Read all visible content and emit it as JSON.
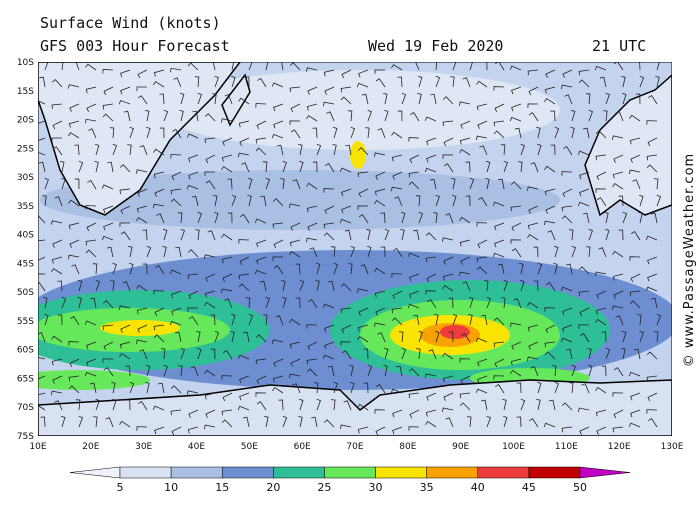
{
  "header": {
    "title": "Surface Wind (knots)",
    "subtitle": "GFS 003 Hour Forecast",
    "date": "Wed 19 Feb 2020",
    "time": "21 UTC"
  },
  "latitudes": [
    "10S",
    "15S",
    "20S",
    "25S",
    "30S",
    "35S",
    "40S",
    "45S",
    "50S",
    "55S",
    "60S",
    "65S",
    "70S",
    "75S"
  ],
  "longitudes": [
    "10E",
    "20E",
    "30E",
    "40E",
    "50E",
    "60E",
    "70E",
    "80E",
    "90E",
    "100E",
    "110E",
    "120E",
    "130E"
  ],
  "colorbar": {
    "ticks": [
      5,
      10,
      15,
      20,
      25,
      30,
      35,
      40,
      45,
      50
    ],
    "colors": [
      "#eef2fa",
      "#d8e2f2",
      "#a9bfe4",
      "#6d8fd2",
      "#2fbf96",
      "#66e85a",
      "#f8e400",
      "#f8a200",
      "#ee3c3c",
      "#c00000",
      "#c000c0"
    ]
  },
  "copyright": "© www.PassageWeather.com"
}
